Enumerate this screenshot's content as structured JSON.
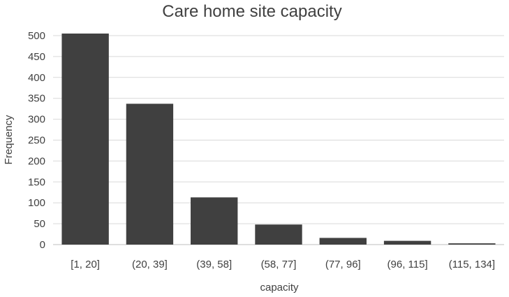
{
  "chart_data": {
    "type": "bar",
    "title": "Care home site capacity",
    "xlabel": "capacity",
    "ylabel": "Frequency",
    "categories": [
      "[1, 20]",
      "(20, 39]",
      "(39, 58]",
      "(58, 77]",
      "(77, 96]",
      "(96, 115]",
      "(115, 134]"
    ],
    "values": [
      505,
      337,
      113,
      48,
      16,
      9,
      3
    ],
    "ylim": [
      0,
      500
    ],
    "yticks": [
      0,
      50,
      100,
      150,
      200,
      250,
      300,
      350,
      400,
      450,
      500
    ],
    "grid": true,
    "legend": "none",
    "colors": {
      "bar": "#404040",
      "grid": "#d9d9d9",
      "text": "#404040"
    }
  }
}
